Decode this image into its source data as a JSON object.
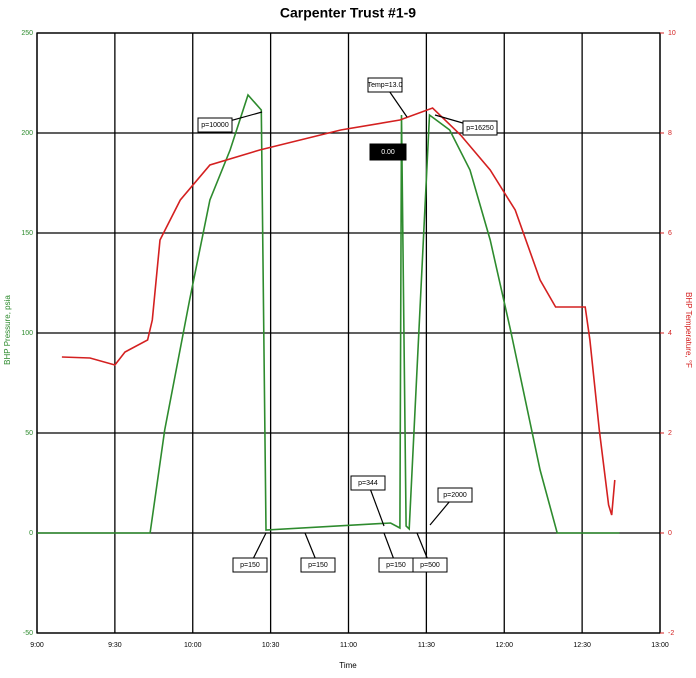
{
  "chart_data": {
    "type": "line",
    "title": "Carpenter Trust #1-9",
    "xlabel": "Time",
    "ylabel": "BHP Pressure, psia",
    "y2label": "BHP Temperature, °F",
    "xlim": [
      9,
      13
    ],
    "xticks": [
      {
        "value": 9,
        "label": "9:00"
      },
      {
        "value": 9.5,
        "label": "9:30"
      },
      {
        "value": 10,
        "label": "10:00"
      },
      {
        "value": 10.5,
        "label": "10:30"
      },
      {
        "value": 11,
        "label": "11:00"
      },
      {
        "value": 11.5,
        "label": "11:30"
      },
      {
        "value": 12,
        "label": "12:00"
      },
      {
        "value": 12.5,
        "label": "12:30"
      },
      {
        "value": 13,
        "label": "13:00"
      }
    ],
    "ylim": [
      -50,
      250
    ],
    "yticks": [
      -50,
      0,
      50,
      100,
      150,
      200,
      250
    ],
    "y2lim": [
      -2,
      10
    ],
    "y2ticks": [
      -2,
      0,
      2,
      4,
      6,
      8,
      10
    ],
    "grid": true,
    "series": [
      {
        "name": "Pressure",
        "color": "#2e8b2e",
        "x": [
          9,
          9.726,
          9.82,
          9.98,
          10.11,
          10.24,
          10.355,
          10.44,
          10.47,
          11.27,
          11.33,
          11.34,
          11.37,
          11.39,
          11.52,
          11.65,
          11.78,
          11.91,
          12.04,
          12.23,
          12.34,
          12.74
        ],
        "values": [
          0,
          0,
          51.5,
          116.5,
          166.5,
          191.5,
          219,
          211.5,
          1.5,
          5,
          2.5,
          209,
          3.5,
          2,
          209,
          201.5,
          181.5,
          146.5,
          101.5,
          31.5,
          0,
          0
        ]
      },
      {
        "name": "Temperature",
        "color": "#d42020",
        "axis": "y2",
        "x": [
          9.16,
          9.34,
          9.5,
          9.565,
          9.71,
          9.74,
          9.79,
          9.92,
          10.11,
          10.43,
          10.95,
          11.33,
          11.54,
          11.72,
          11.91,
          12.07,
          12.23,
          12.33,
          12.52,
          12.55,
          12.61,
          12.67,
          12.69,
          12.71
        ],
        "values": [
          3.52,
          3.5,
          3.36,
          3.62,
          3.86,
          4.26,
          5.86,
          6.66,
          7.36,
          7.66,
          8.06,
          8.26,
          8.5,
          7.96,
          7.26,
          6.46,
          5.06,
          4.52,
          4.52,
          3.86,
          2.06,
          0.56,
          0.36,
          1.06
        ]
      }
    ],
    "annotations": [
      "p=10000",
      "Temp=13.0",
      "0.00",
      "p=16250",
      "p=150",
      "p=150",
      "p=344",
      "p=150",
      "p=500",
      "p=2000"
    ]
  }
}
